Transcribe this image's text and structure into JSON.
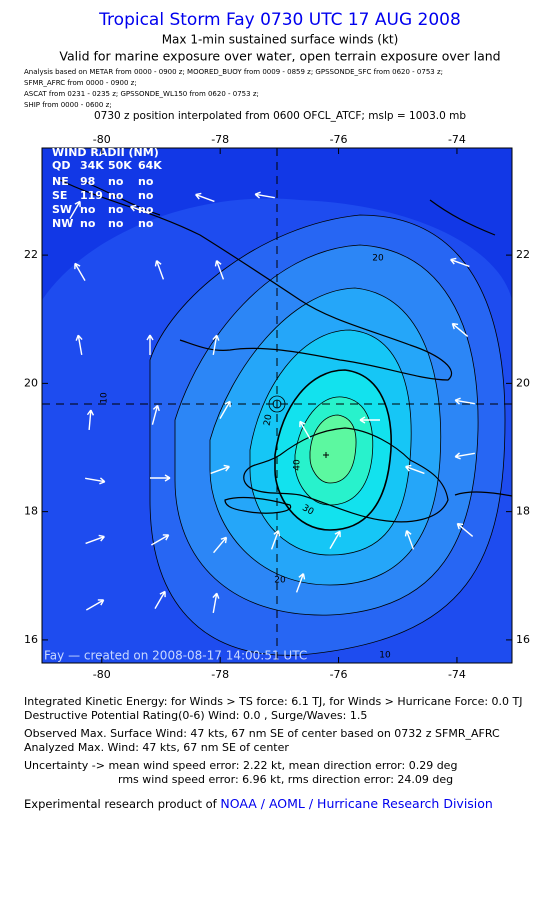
{
  "header": {
    "title": "Tropical Storm Fay 0730 UTC 17 AUG 2008",
    "subtitle": "Max 1-min sustained surface winds (kt)",
    "validity": "Valid for marine exposure over water, open terrain exposure over land",
    "sources": [
      "Analysis based on  METAR from 0000 - 0900 z;  MOORED_BUOY from 0009 - 0859 z;  GPSSONDE_SFC from 0620 - 0753 z;",
      "SFMR_AFRC from 0000 - 0900 z;",
      "ASCAT from 0231 - 0235 z;  GPSSONDE_WL150 from 0620 - 0753 z;",
      "SHIP from 0000 - 0600 z;"
    ],
    "position": "0730 z position interpolated from 0600 OFCL_ATCF; mslp = 1003.0 mb"
  },
  "map": {
    "xlim": [
      -81.01,
      -73.07
    ],
    "ylim": [
      15.64,
      23.67
    ],
    "xticks": [
      -80,
      -78,
      -76,
      -74
    ],
    "yticks": [
      16,
      18,
      20,
      22
    ],
    "contour_labels": [
      20,
      20,
      40,
      30,
      20,
      10,
      10
    ],
    "wind_radii": {
      "title": "WIND RADII (NM)",
      "columns": [
        "QD",
        "34K",
        "50K",
        "64K"
      ],
      "rows": [
        [
          "NE",
          "98",
          "no",
          "no"
        ],
        [
          "SE",
          "119",
          "no",
          "no"
        ],
        [
          "SW",
          "no",
          "no",
          "no"
        ],
        [
          "NW",
          "no",
          "no",
          "no"
        ]
      ]
    },
    "credit": "Fay — created on 2008-08-17 14:00:51 UTC"
  },
  "footer": {
    "lines": [
      "Integrated Kinetic Energy:  for Winds > TS force: 6.1 TJ,  for Winds > Hurricane Force: 0.0 TJ",
      "Destructive Potential Rating(0-6)   Wind: 0.0 , Surge/Waves: 1.5",
      "Observed Max. Surface Wind: 47 kts, 67 nm SE of center based on 0732 z SFMR_AFRC",
      "Analyzed Max. Wind: 47 kts, 67 nm SE of center",
      "Uncertainty -> mean wind speed error: 2.22 kt,   mean direction error: 0.29 deg",
      "rms wind speed error: 6.96 kt,   rms direction error: 24.09 deg"
    ],
    "credit_prefix": "Experimental research product of ",
    "credit_link": "NOAA / AOML / Hurricane Research Division"
  }
}
